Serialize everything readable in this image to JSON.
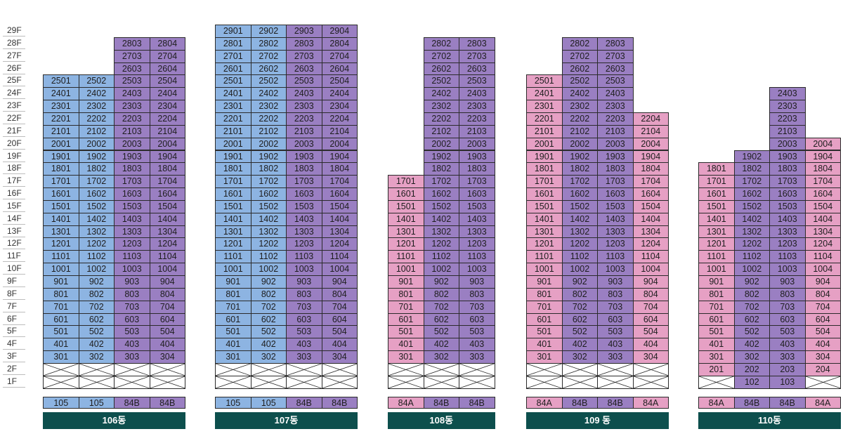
{
  "floors": [
    "29F",
    "28F",
    "27F",
    "26F",
    "25F",
    "24F",
    "23F",
    "22F",
    "21F",
    "20F",
    "19F",
    "18F",
    "17F",
    "16F",
    "15F",
    "14F",
    "13F",
    "12F",
    "11F",
    "10F",
    "9F",
    "8F",
    "7F",
    "6F",
    "5F",
    "4F",
    "3F",
    "2F",
    "1F"
  ],
  "colors": {
    "105": "#8db4e2",
    "84B": "#9a7fc2",
    "84A": "#e6a0c4",
    "banner": "#0d4f4d"
  },
  "buildings": [
    {
      "name": "106동",
      "types": [
        "105",
        "105",
        "84B",
        "84B"
      ],
      "columns": [
        {
          "top": 25,
          "bottom": 3,
          "empty": [
            1,
            2
          ]
        },
        {
          "top": 25,
          "bottom": 3,
          "empty": [
            1,
            2
          ]
        },
        {
          "top": 28,
          "bottom": 3,
          "empty": [
            1,
            2
          ]
        },
        {
          "top": 28,
          "bottom": 3,
          "empty": [
            1,
            2
          ]
        }
      ]
    },
    {
      "name": "107동",
      "types": [
        "105",
        "105",
        "84B",
        "84B"
      ],
      "columns": [
        {
          "top": 29,
          "bottom": 3,
          "empty": [
            1,
            2
          ]
        },
        {
          "top": 29,
          "bottom": 3,
          "empty": [
            1,
            2
          ]
        },
        {
          "top": 29,
          "bottom": 3,
          "empty": [
            1,
            2
          ]
        },
        {
          "top": 29,
          "bottom": 3,
          "empty": [
            1,
            2
          ]
        }
      ]
    },
    {
      "name": "108동",
      "types": [
        "84A",
        "84B",
        "84B"
      ],
      "columns": [
        {
          "top": 17,
          "bottom": 3,
          "empty": [
            1,
            2
          ]
        },
        {
          "top": 28,
          "bottom": 3,
          "empty": [
            1,
            2
          ]
        },
        {
          "top": 28,
          "bottom": 3,
          "empty": [
            1,
            2
          ]
        }
      ]
    },
    {
      "name": "109 동",
      "types": [
        "84A",
        "84B",
        "84B",
        "84A"
      ],
      "columns": [
        {
          "top": 25,
          "bottom": 3,
          "empty": [
            1,
            2
          ]
        },
        {
          "top": 28,
          "bottom": 3,
          "empty": [
            1,
            2
          ]
        },
        {
          "top": 28,
          "bottom": 3,
          "empty": [
            1,
            2
          ]
        },
        {
          "top": 22,
          "bottom": 3,
          "empty": [
            1,
            2
          ]
        }
      ]
    },
    {
      "name": "110동",
      "types": [
        "84A",
        "84B",
        "84B",
        "84A"
      ],
      "columns": [
        {
          "top": 18,
          "bottom": 2,
          "empty": [
            1
          ]
        },
        {
          "top": 19,
          "bottom": 1,
          "empty": []
        },
        {
          "top": 24,
          "bottom": 1,
          "empty": []
        },
        {
          "top": 20,
          "bottom": 2,
          "empty": [
            1
          ]
        }
      ]
    }
  ]
}
